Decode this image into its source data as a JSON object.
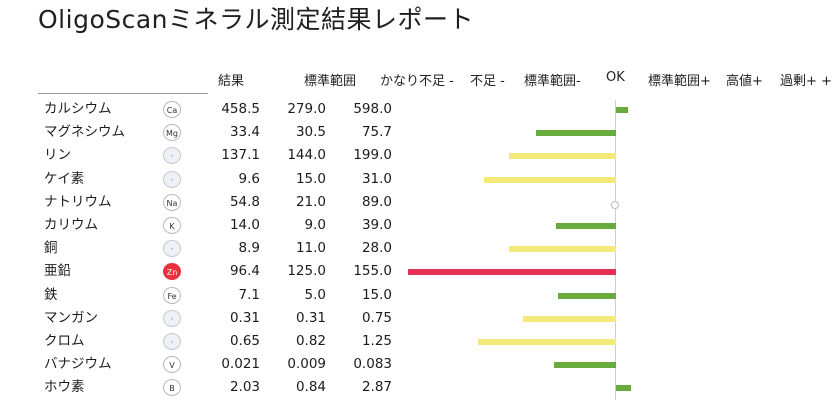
{
  "title": "OligoScanミネラル測定結果レポート",
  "headers": {
    "result": "結果",
    "standard_range": "標準範囲",
    "quite_deficient": "かなり不足 -",
    "deficient": "不足 -",
    "standard_minus": "標準範囲-",
    "ok": "OK",
    "standard_plus": "標準範囲+",
    "high": "高値+",
    "excess": "過剰+ +"
  },
  "colors": {
    "green": "#6aab3e",
    "yellow": "#f4ea79",
    "red": "#e52f55",
    "zinc_badge": "#e8323c"
  },
  "minerals": [
    {
      "name": "カルシウム",
      "symbol": "Ca",
      "result": "458.5",
      "min": "279.0",
      "max": "598.0",
      "deviation": 0.12,
      "color": "green"
    },
    {
      "name": "マグネシウム",
      "symbol": "Mg",
      "result": "33.4",
      "min": "30.5",
      "max": "75.7",
      "deviation": -0.8,
      "color": "green"
    },
    {
      "name": "リン",
      "symbol": "",
      "result": "137.1",
      "min": "144.0",
      "max": "199.0",
      "deviation": -1.07,
      "color": "yellow"
    },
    {
      "name": "ケイ素",
      "symbol": "",
      "result": "9.6",
      "min": "15.0",
      "max": "31.0",
      "deviation": -1.32,
      "color": "yellow"
    },
    {
      "name": "ナトリウム",
      "symbol": "Na",
      "result": "54.8",
      "min": "21.0",
      "max": "89.0",
      "deviation": 0,
      "color": "green"
    },
    {
      "name": "カリウム",
      "symbol": "K",
      "result": "14.0",
      "min": "9.0",
      "max": "39.0",
      "deviation": -0.6,
      "color": "green"
    },
    {
      "name": "銅",
      "symbol": "",
      "result": "8.9",
      "min": "11.0",
      "max": "28.0",
      "deviation": -1.07,
      "color": "yellow"
    },
    {
      "name": "亜鉛",
      "symbol": "Zn",
      "result": "96.4",
      "min": "125.0",
      "max": "155.0",
      "deviation": -2.08,
      "color": "red"
    },
    {
      "name": "鉄",
      "symbol": "Fe",
      "result": "7.1",
      "min": "5.0",
      "max": "15.0",
      "deviation": -0.58,
      "color": "green"
    },
    {
      "name": "マンガン",
      "symbol": "",
      "result": "0.31",
      "min": "0.31",
      "max": "0.75",
      "deviation": -0.93,
      "color": "yellow"
    },
    {
      "name": "クロム",
      "symbol": "",
      "result": "0.65",
      "min": "0.82",
      "max": "1.25",
      "deviation": -1.38,
      "color": "yellow"
    },
    {
      "name": "バナジウム",
      "symbol": "V",
      "result": "0.021",
      "min": "0.009",
      "max": "0.083",
      "deviation": -0.62,
      "color": "green"
    },
    {
      "name": "ホウ素",
      "symbol": "B",
      "result": "2.03",
      "min": "0.84",
      "max": "2.87",
      "deviation": 0.15,
      "color": "green"
    }
  ]
}
